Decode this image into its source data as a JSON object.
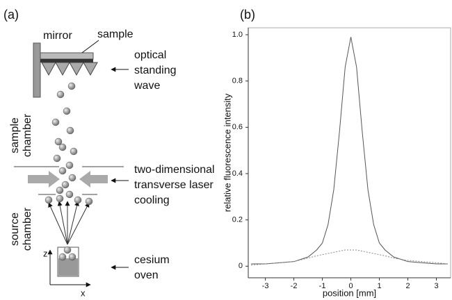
{
  "diagram": {
    "panel_label": "(a)",
    "mirror": "mirror",
    "sample": "sample",
    "optical_standing_wave": [
      "optical",
      "standing",
      "wave"
    ],
    "sample_chamber": [
      "sample",
      "chamber"
    ],
    "laser_cooling": [
      "two-dimensional",
      "transverse laser",
      "cooling"
    ],
    "source_chamber": [
      "source",
      "chamber"
    ],
    "cesium_oven": [
      "cesium",
      "oven"
    ],
    "axis_z": "z",
    "axis_x": "x"
  },
  "chart_data": {
    "type": "line",
    "panel_label": "(b)",
    "x_label": "position [mm]",
    "y_label": "relative fluorescence intensity",
    "x": [
      -3.5,
      -3,
      -2.5,
      -2,
      -1.5,
      -1.2,
      -1,
      -0.8,
      -0.6,
      -0.4,
      -0.2,
      0,
      0.2,
      0.4,
      0.6,
      0.8,
      1,
      1.2,
      1.5,
      2,
      2.5,
      3,
      3.4
    ],
    "series": [
      {
        "color": "#555555",
        "dash": false,
        "values": [
          0.01,
          0.01,
          0.015,
          0.02,
          0.04,
          0.07,
          0.1,
          0.18,
          0.33,
          0.58,
          0.86,
          0.99,
          0.86,
          0.58,
          0.33,
          0.18,
          0.1,
          0.07,
          0.04,
          0.02,
          0.015,
          0.01,
          0.01
        ]
      },
      {
        "color": "#888888",
        "dash": true,
        "values": [
          0.005,
          0.01,
          0.015,
          0.02,
          0.035,
          0.045,
          0.05,
          0.055,
          0.06,
          0.065,
          0.07,
          0.07,
          0.07,
          0.065,
          0.06,
          0.055,
          0.05,
          0.045,
          0.035,
          0.025,
          0.02,
          0.015,
          0.01
        ]
      }
    ],
    "xlim": [
      -3.6,
      3.5
    ],
    "ylim": [
      -0.05,
      1.03
    ],
    "xticks": [
      -3,
      -2,
      -1,
      0,
      1,
      2,
      3
    ],
    "yticks": [
      0,
      0.2,
      0.4,
      0.6,
      0.8,
      {
        "value": 1,
        "label": "1.0"
      }
    ]
  }
}
